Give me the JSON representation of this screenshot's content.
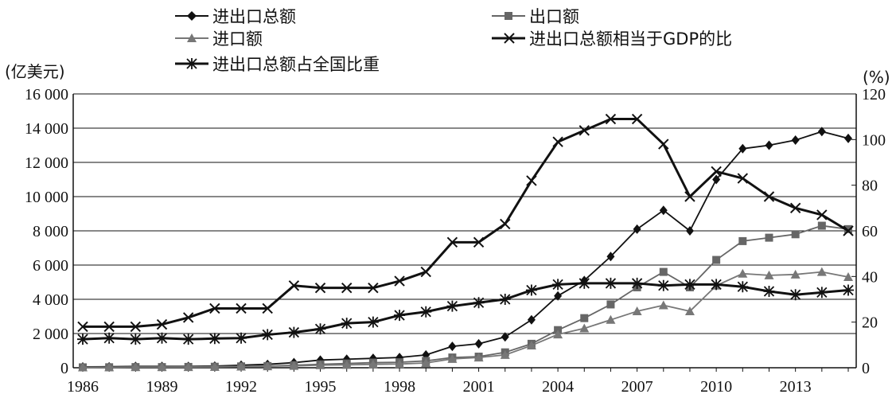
{
  "chart_data": {
    "type": "line",
    "left_axis_unit": "(亿美元)",
    "right_axis_unit": "(%)",
    "x_tick_labels": [
      "1986",
      "1989",
      "1992",
      "1995",
      "1998",
      "2001",
      "2004",
      "2007",
      "2010",
      "2013"
    ],
    "y_left_tick_labels": [
      "0",
      "2 000",
      "4 000",
      "6 000",
      "8 000",
      "10 000",
      "12 000",
      "14 000",
      "16 000"
    ],
    "y_right_tick_labels": [
      "0",
      "20",
      "40",
      "60",
      "80",
      "100",
      "120"
    ],
    "y_left_range": [
      0,
      16000
    ],
    "y_right_range": [
      0,
      120
    ],
    "x": [
      1986,
      1987,
      1988,
      1989,
      1990,
      1991,
      1992,
      1993,
      1994,
      1995,
      1996,
      1997,
      1998,
      1999,
      2000,
      2001,
      2002,
      2003,
      2004,
      2005,
      2006,
      2007,
      2008,
      2009,
      2010,
      2011,
      2012,
      2013,
      2014,
      2015
    ],
    "series": [
      {
        "name": "进出口总额",
        "axis": "left",
        "marker": "diamond",
        "color": "#111111",
        "values": [
          50,
          60,
          80,
          80,
          80,
          100,
          150,
          200,
          300,
          450,
          500,
          550,
          600,
          750,
          1250,
          1400,
          1800,
          2800,
          4200,
          5100,
          6500,
          8100,
          9200,
          8000,
          11000,
          12800,
          13000,
          13300,
          13800,
          13400
        ]
      },
      {
        "name": "出口额",
        "axis": "left",
        "marker": "square",
        "color": "#666666",
        "values": [
          25,
          30,
          40,
          40,
          50,
          60,
          80,
          100,
          150,
          200,
          250,
          300,
          320,
          400,
          600,
          650,
          900,
          1400,
          2200,
          2900,
          3700,
          4700,
          5600,
          4700,
          6300,
          7400,
          7600,
          7800,
          8300,
          8100
        ]
      },
      {
        "name": "进口额",
        "axis": "left",
        "marker": "triangle",
        "color": "#777777",
        "values": [
          25,
          30,
          40,
          40,
          40,
          50,
          70,
          90,
          110,
          150,
          170,
          200,
          220,
          280,
          520,
          600,
          750,
          1300,
          1950,
          2300,
          2800,
          3300,
          3650,
          3300,
          4800,
          5500,
          5400,
          5450,
          5600,
          5300
        ]
      },
      {
        "name": "进出口总额相当于GDP的比",
        "axis": "right",
        "marker": "x",
        "color": "#111111",
        "values": [
          18,
          18,
          18,
          19,
          22,
          26,
          26,
          26,
          36,
          35,
          35,
          35,
          38,
          42,
          55,
          55,
          63,
          82,
          99,
          104,
          109,
          109,
          98,
          75,
          86,
          83,
          75,
          70,
          67,
          60
        ]
      },
      {
        "name": "进出口总额占全国比重",
        "axis": "right",
        "marker": "asterisk",
        "color": "#111111",
        "values": [
          12.5,
          13,
          12.5,
          13,
          12.5,
          12.8,
          13,
          14.5,
          15.5,
          17,
          19.5,
          20,
          23,
          24.5,
          27,
          28.5,
          30,
          34,
          36.5,
          37,
          37,
          37,
          36,
          36.5,
          36.5,
          35.5,
          33.5,
          32,
          33,
          34
        ]
      }
    ],
    "gridlines": "horizontal",
    "legend_position": "top"
  }
}
